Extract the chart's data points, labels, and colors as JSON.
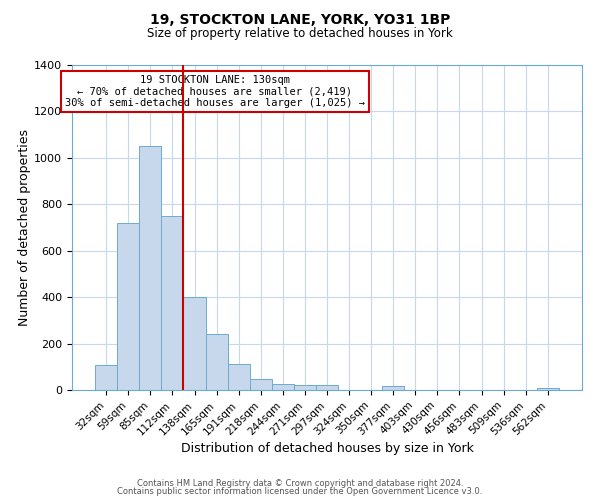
{
  "title": "19, STOCKTON LANE, YORK, YO31 1BP",
  "subtitle": "Size of property relative to detached houses in York",
  "xlabel": "Distribution of detached houses by size in York",
  "ylabel": "Number of detached properties",
  "bar_labels": [
    "32sqm",
    "59sqm",
    "85sqm",
    "112sqm",
    "138sqm",
    "165sqm",
    "191sqm",
    "218sqm",
    "244sqm",
    "271sqm",
    "297sqm",
    "324sqm",
    "350sqm",
    "377sqm",
    "403sqm",
    "430sqm",
    "456sqm",
    "483sqm",
    "509sqm",
    "536sqm",
    "562sqm"
  ],
  "bar_values": [
    108,
    720,
    1050,
    750,
    400,
    240,
    110,
    48,
    28,
    20,
    20,
    0,
    0,
    18,
    0,
    0,
    0,
    0,
    0,
    0,
    8
  ],
  "bar_color": "#c8d8ec",
  "bar_edge_color": "#6aaccf",
  "ylim": [
    0,
    1400
  ],
  "yticks": [
    0,
    200,
    400,
    600,
    800,
    1000,
    1200,
    1400
  ],
  "vline_color": "#cc0000",
  "annotation_title": "19 STOCKTON LANE: 130sqm",
  "annotation_line1": "← 70% of detached houses are smaller (2,419)",
  "annotation_line2": "30% of semi-detached houses are larger (1,025) →",
  "annotation_box_color": "#cc0000",
  "footer1": "Contains HM Land Registry data © Crown copyright and database right 2024.",
  "footer2": "Contains public sector information licensed under the Open Government Licence v3.0.",
  "background_color": "#ffffff",
  "grid_color": "#c8d8ec"
}
